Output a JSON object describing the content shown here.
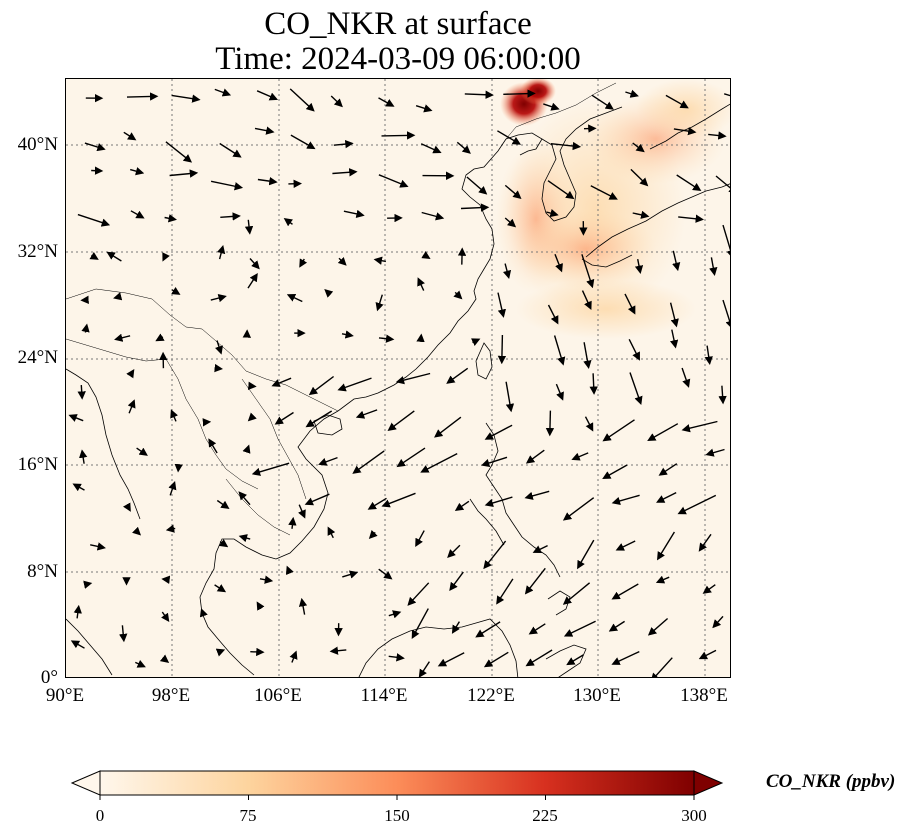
{
  "title": {
    "line1": "CO_NKR at surface",
    "line2": "Time: 2024-03-09 06:00:00"
  },
  "map": {
    "lon_range": [
      90,
      140
    ],
    "lat_range": [
      0,
      45
    ],
    "lat_ticks": [
      "0°",
      "8°N",
      "16°N",
      "24°N",
      "32°N",
      "40°N"
    ],
    "lon_ticks": [
      "90°E",
      "98°E",
      "106°E",
      "114°E",
      "122°E",
      "130°E",
      "138°E"
    ],
    "gridlines": "dotted",
    "background_color": "#fdf5e9",
    "plume": {
      "location": "Northeast China / Korea",
      "max_value_ppbv": 300,
      "color": "#8b0000"
    },
    "features": [
      "coastlines",
      "country borders",
      "wind vectors"
    ]
  },
  "colorbar": {
    "label": "CO_NKR (ppbv)",
    "ticks": [
      "0",
      "75",
      "150",
      "225",
      "300"
    ],
    "vmin": 0,
    "vmax": 300,
    "colormap": "OrRd",
    "colors": [
      "#fff7ec",
      "#fdd49e",
      "#fc8d59",
      "#d7301f",
      "#7f0000"
    ],
    "extend": "both"
  }
}
